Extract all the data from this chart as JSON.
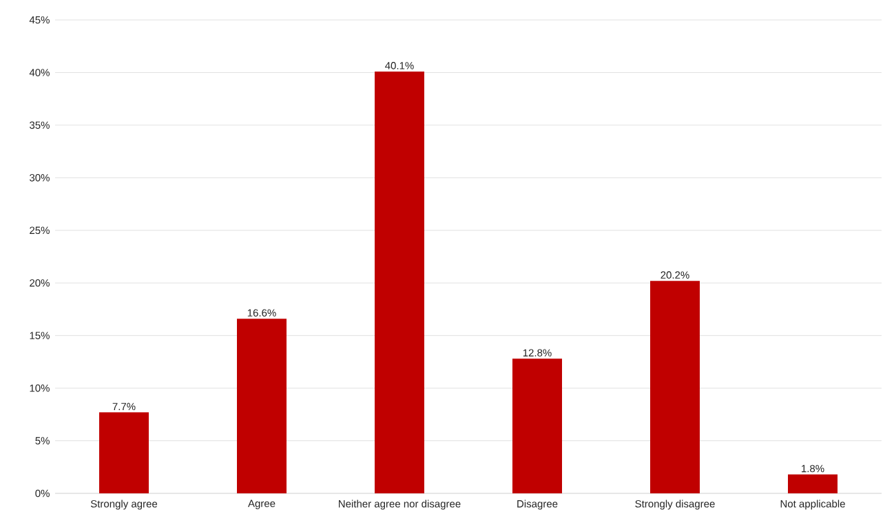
{
  "chart_data": {
    "type": "bar",
    "categories": [
      "Strongly agree",
      "Agree",
      "Neither agree nor disagree",
      "Disagree",
      "Strongly disagree",
      "Not applicable"
    ],
    "values": [
      7.7,
      16.6,
      40.1,
      12.8,
      20.2,
      1.8
    ],
    "value_labels": [
      "7.7%",
      "16.6%",
      "40.1%",
      "12.8%",
      "20.2%",
      "1.8%"
    ],
    "color": "#c00000",
    "ylim": [
      0,
      45
    ],
    "yticks": [
      {
        "value": 0,
        "label": "0%"
      },
      {
        "value": 5,
        "label": "5%"
      },
      {
        "value": 10,
        "label": "10%"
      },
      {
        "value": 15,
        "label": "15%"
      },
      {
        "value": 20,
        "label": "20%"
      },
      {
        "value": 25,
        "label": "25%"
      },
      {
        "value": 30,
        "label": "30%"
      },
      {
        "value": 35,
        "label": "35%"
      },
      {
        "value": 40,
        "label": "40%"
      },
      {
        "value": 45,
        "label": "45%"
      }
    ],
    "grid": "y"
  }
}
